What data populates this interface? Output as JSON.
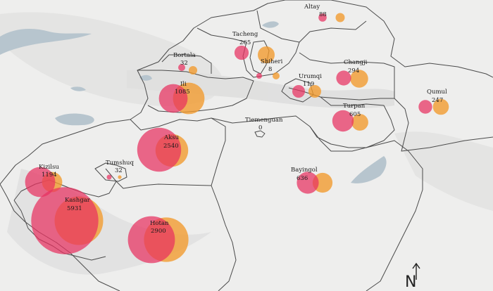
{
  "map": {
    "colors": {
      "background": "#e9eaea",
      "land": "#f3f3f2",
      "water": "#b6c4cd",
      "border": "#4a4a4a",
      "primary_circle": "#e8305f",
      "secondary_circle": "#f29a2c"
    },
    "north_label": "N",
    "regions": [
      {
        "id": "altay",
        "name": "Altay",
        "value": "88",
        "v1": 88,
        "v2": 110
      },
      {
        "id": "tacheng",
        "name": "Tacheng",
        "value": "265",
        "v1": 265,
        "v2": 300
      },
      {
        "id": "bortala",
        "name": "Bortala",
        "value": "32",
        "v1": 32,
        "v2": 45
      },
      {
        "id": "shiheri",
        "name": "Shiheri",
        "value": "8",
        "v1": 8,
        "v2": 20
      },
      {
        "id": "changji",
        "name": "Changji",
        "value": "294",
        "v1": 294,
        "v2": 420
      },
      {
        "id": "urumqi",
        "name": "Urumqi",
        "value": "119",
        "v1": 119,
        "v2": 170
      },
      {
        "id": "ili",
        "name": "Ili",
        "value": "1085",
        "v1": 1085,
        "v2": 1300
      },
      {
        "id": "turpan",
        "name": "Turpan",
        "value": "605",
        "v1": 605,
        "v2": 370
      },
      {
        "id": "qumul",
        "name": "Qumul",
        "value": "247",
        "v1": 247,
        "v2": 330
      },
      {
        "id": "tiemenguan",
        "name": "Tiemenguan",
        "value": "0",
        "v1": 0,
        "v2": 0
      },
      {
        "id": "aksu",
        "name": "Aksu",
        "value": "2540",
        "v1": 2540,
        "v2": 1400
      },
      {
        "id": "kizilsu",
        "name": "Kizilsu",
        "value": "1194",
        "v1": 1194,
        "v2": 540
      },
      {
        "id": "tumshuq",
        "name": "Tumshuq",
        "value": "32",
        "v1": 32,
        "v2": 18
      },
      {
        "id": "bayingol",
        "name": "Bayingol",
        "value": "636",
        "v1": 636,
        "v2": 520
      },
      {
        "id": "kashgar",
        "name": "Kashgar",
        "value": "5931",
        "v1": 5931,
        "v2": 3100
      },
      {
        "id": "hotan",
        "name": "Hotan",
        "value": "2900",
        "v1": 2900,
        "v2": 2600
      }
    ]
  }
}
